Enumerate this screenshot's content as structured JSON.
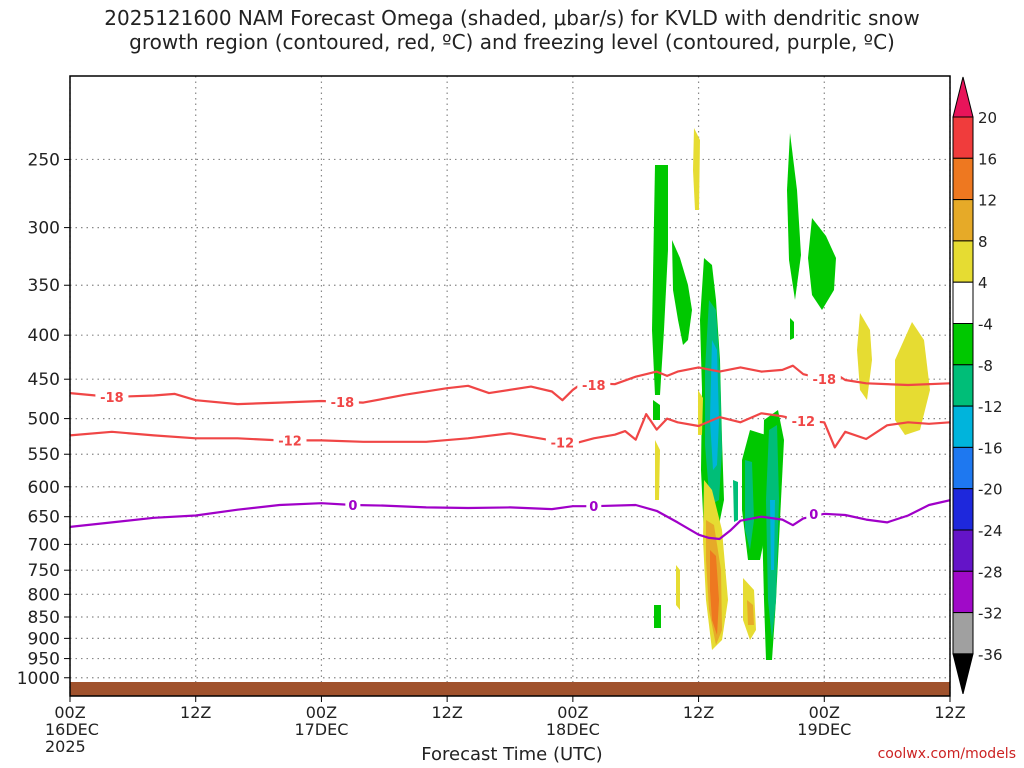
{
  "title_line1": "2025121600 NAM Forecast Omega (shaded, μbar/s) for KVLD with dendritic snow",
  "title_line2": "growth region (contoured, red, ºC) and freezing level (contoured, purple, ºC)",
  "watermark": "coolwx.com/models",
  "chart_data": {
    "type": "contour",
    "title": "2025121600 NAM Forecast Omega (shaded, μbar/s) for KVLD with dendritic snow growth region (contoured, red, ºC) and freezing level (contoured, purple, ºC)",
    "xlabel": "Forecast Time (UTC)",
    "ylabel": "",
    "y_scale": "log-pressure",
    "y_ticks": [
      250,
      300,
      350,
      400,
      450,
      500,
      550,
      600,
      650,
      700,
      750,
      800,
      850,
      900,
      950,
      1000
    ],
    "y_range": [
      1050,
      200
    ],
    "x_ticks": [
      {
        "hour": 0,
        "lines": [
          "00Z",
          "16DEC",
          "2025"
        ]
      },
      {
        "hour": 12,
        "lines": [
          "12Z"
        ]
      },
      {
        "hour": 24,
        "lines": [
          "00Z",
          "17DEC"
        ]
      },
      {
        "hour": 36,
        "lines": [
          "12Z"
        ]
      },
      {
        "hour": 48,
        "lines": [
          "00Z",
          "18DEC"
        ]
      },
      {
        "hour": 60,
        "lines": [
          "12Z"
        ]
      },
      {
        "hour": 72,
        "lines": [
          "00Z",
          "19DEC"
        ]
      },
      {
        "hour": 84,
        "lines": [
          "12Z"
        ]
      }
    ],
    "x_range": [
      0,
      84
    ],
    "grid": true,
    "colorbar": {
      "labels": [
        "20",
        "16",
        "12",
        "8",
        "4",
        "-4",
        "-8",
        "-12",
        "-16",
        "-20",
        "-24",
        "-28",
        "-32",
        "-36"
      ],
      "colors": [
        "#e8145a",
        "#f03c3c",
        "#ee7820",
        "#e6aa28",
        "#e6dc32",
        "#ffffff",
        "#00c800",
        "#00be78",
        "#00b4dc",
        "#1e78f0",
        "#1e28dc",
        "#6414c8",
        "#a00ac8",
        "#a0a0a0",
        "#000000"
      ]
    },
    "contours": [
      {
        "color": "#f04646",
        "label": "-18",
        "label_points": [
          [
            4,
            472
          ],
          [
            26,
            478
          ],
          [
            50,
            457
          ],
          [
            72,
            450
          ]
        ],
        "points": [
          [
            0,
            467
          ],
          [
            4,
            472
          ],
          [
            8,
            470
          ],
          [
            10,
            468
          ],
          [
            12,
            476
          ],
          [
            16,
            481
          ],
          [
            20,
            479
          ],
          [
            24,
            477
          ],
          [
            28,
            479
          ],
          [
            32,
            469
          ],
          [
            36,
            461
          ],
          [
            38,
            458
          ],
          [
            40,
            467
          ],
          [
            44,
            459
          ],
          [
            46,
            465
          ],
          [
            47,
            476
          ],
          [
            48,
            463
          ],
          [
            49,
            454
          ],
          [
            52,
            456
          ],
          [
            54,
            447
          ],
          [
            56,
            441
          ],
          [
            57,
            446
          ],
          [
            58,
            441
          ],
          [
            60,
            436
          ],
          [
            62,
            441
          ],
          [
            64,
            436
          ],
          [
            66,
            441
          ],
          [
            68,
            439
          ],
          [
            69,
            434
          ],
          [
            70,
            444
          ],
          [
            72,
            450
          ],
          [
            73,
            443
          ],
          [
            74,
            451
          ],
          [
            76,
            455
          ],
          [
            80,
            457
          ],
          [
            84,
            455
          ]
        ]
      },
      {
        "color": "#f04646",
        "label": "-12",
        "label_points": [
          [
            21,
            530
          ],
          [
            47,
            533
          ],
          [
            70,
            503
          ]
        ],
        "points": [
          [
            0,
            523
          ],
          [
            4,
            518
          ],
          [
            8,
            523
          ],
          [
            12,
            527
          ],
          [
            16,
            527
          ],
          [
            20,
            530
          ],
          [
            24,
            530
          ],
          [
            28,
            532
          ],
          [
            34,
            532
          ],
          [
            38,
            527
          ],
          [
            42,
            520
          ],
          [
            46,
            530
          ],
          [
            48,
            535
          ],
          [
            50,
            527
          ],
          [
            52,
            522
          ],
          [
            53,
            517
          ],
          [
            54,
            529
          ],
          [
            55,
            494
          ],
          [
            56,
            515
          ],
          [
            57,
            500
          ],
          [
            58,
            505
          ],
          [
            60,
            510
          ],
          [
            62,
            498
          ],
          [
            64,
            505
          ],
          [
            66,
            493
          ],
          [
            68,
            497
          ],
          [
            70,
            503
          ],
          [
            72,
            505
          ],
          [
            73,
            540
          ],
          [
            74,
            518
          ],
          [
            76,
            528
          ],
          [
            78,
            509
          ],
          [
            80,
            505
          ],
          [
            82,
            507
          ],
          [
            84,
            505
          ]
        ]
      },
      {
        "color": "#a000c8",
        "label": "0",
        "label_points": [
          [
            27,
            630
          ],
          [
            50,
            632
          ],
          [
            71,
            645
          ]
        ],
        "points": [
          [
            0,
            668
          ],
          [
            4,
            660
          ],
          [
            8,
            652
          ],
          [
            12,
            648
          ],
          [
            16,
            638
          ],
          [
            20,
            630
          ],
          [
            24,
            627
          ],
          [
            27,
            630
          ],
          [
            30,
            631
          ],
          [
            34,
            634
          ],
          [
            38,
            635
          ],
          [
            42,
            634
          ],
          [
            46,
            637
          ],
          [
            48,
            632
          ],
          [
            50,
            632
          ],
          [
            54,
            630
          ],
          [
            56,
            640
          ],
          [
            58,
            660
          ],
          [
            60,
            682
          ],
          [
            61,
            688
          ],
          [
            62,
            690
          ],
          [
            63,
            675
          ],
          [
            64,
            657
          ],
          [
            66,
            650
          ],
          [
            68,
            655
          ],
          [
            69,
            665
          ],
          [
            70,
            653
          ],
          [
            72,
            645
          ],
          [
            74,
            647
          ],
          [
            76,
            655
          ],
          [
            78,
            660
          ],
          [
            80,
            648
          ],
          [
            82,
            630
          ],
          [
            84,
            622
          ]
        ]
      }
    ]
  }
}
